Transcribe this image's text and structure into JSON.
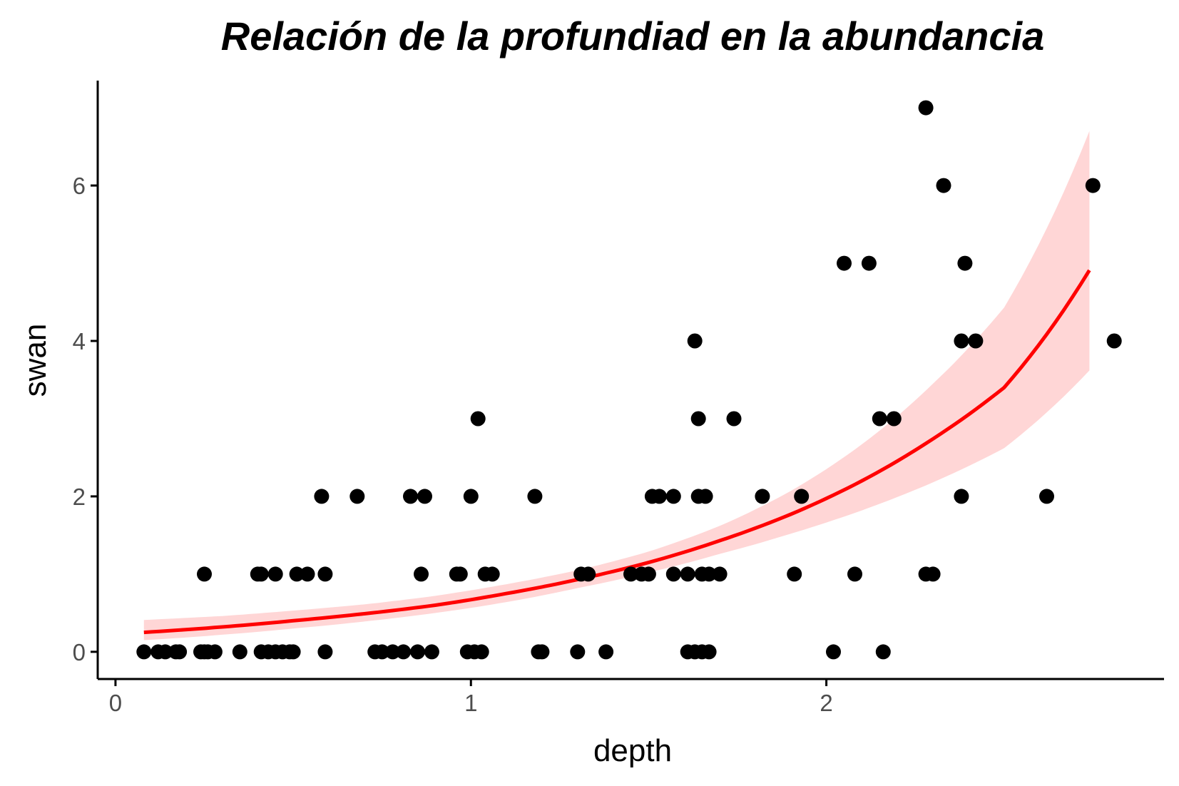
{
  "chart_data": {
    "type": "scatter",
    "title": "Relación de la profundiad en la abundancia",
    "xlabel": "depth",
    "ylabel": "swan",
    "xlim": [
      -0.05,
      2.95
    ],
    "ylim": [
      -0.35,
      7.35
    ],
    "xticks": [
      0,
      1,
      2
    ],
    "yticks": [
      0,
      2,
      4,
      6
    ],
    "grid": false,
    "legend": "none",
    "colors": {
      "points": "#000000",
      "fit_line": "#ff0000",
      "ribbon": "#ffd6d6",
      "axis": "#000000",
      "tick_labels": "#4d4d4d"
    },
    "points": [
      {
        "x": 0.08,
        "y": 0
      },
      {
        "x": 0.12,
        "y": 0
      },
      {
        "x": 0.14,
        "y": 0
      },
      {
        "x": 0.17,
        "y": 0
      },
      {
        "x": 0.18,
        "y": 0
      },
      {
        "x": 0.24,
        "y": 0
      },
      {
        "x": 0.25,
        "y": 0
      },
      {
        "x": 0.26,
        "y": 0
      },
      {
        "x": 0.28,
        "y": 0
      },
      {
        "x": 0.35,
        "y": 0
      },
      {
        "x": 0.41,
        "y": 0
      },
      {
        "x": 0.43,
        "y": 0
      },
      {
        "x": 0.45,
        "y": 0
      },
      {
        "x": 0.47,
        "y": 0
      },
      {
        "x": 0.49,
        "y": 0
      },
      {
        "x": 0.5,
        "y": 0
      },
      {
        "x": 0.59,
        "y": 0
      },
      {
        "x": 0.73,
        "y": 0
      },
      {
        "x": 0.75,
        "y": 0
      },
      {
        "x": 0.78,
        "y": 0
      },
      {
        "x": 0.81,
        "y": 0
      },
      {
        "x": 0.85,
        "y": 0
      },
      {
        "x": 0.89,
        "y": 0
      },
      {
        "x": 0.99,
        "y": 0
      },
      {
        "x": 1.01,
        "y": 0
      },
      {
        "x": 1.03,
        "y": 0
      },
      {
        "x": 1.19,
        "y": 0
      },
      {
        "x": 1.2,
        "y": 0
      },
      {
        "x": 1.3,
        "y": 0
      },
      {
        "x": 1.38,
        "y": 0
      },
      {
        "x": 1.61,
        "y": 0
      },
      {
        "x": 1.63,
        "y": 0
      },
      {
        "x": 1.65,
        "y": 0
      },
      {
        "x": 1.67,
        "y": 0
      },
      {
        "x": 2.02,
        "y": 0
      },
      {
        "x": 2.16,
        "y": 0
      },
      {
        "x": 0.25,
        "y": 1
      },
      {
        "x": 0.4,
        "y": 1
      },
      {
        "x": 0.41,
        "y": 1
      },
      {
        "x": 0.45,
        "y": 1
      },
      {
        "x": 0.51,
        "y": 1
      },
      {
        "x": 0.54,
        "y": 1
      },
      {
        "x": 0.59,
        "y": 1
      },
      {
        "x": 0.86,
        "y": 1
      },
      {
        "x": 0.96,
        "y": 1
      },
      {
        "x": 0.97,
        "y": 1
      },
      {
        "x": 1.04,
        "y": 1
      },
      {
        "x": 1.06,
        "y": 1
      },
      {
        "x": 1.31,
        "y": 1
      },
      {
        "x": 1.33,
        "y": 1
      },
      {
        "x": 1.45,
        "y": 1
      },
      {
        "x": 1.48,
        "y": 1
      },
      {
        "x": 1.5,
        "y": 1
      },
      {
        "x": 1.57,
        "y": 1
      },
      {
        "x": 1.61,
        "y": 1
      },
      {
        "x": 1.65,
        "y": 1
      },
      {
        "x": 1.67,
        "y": 1
      },
      {
        "x": 1.7,
        "y": 1
      },
      {
        "x": 1.91,
        "y": 1
      },
      {
        "x": 2.08,
        "y": 1
      },
      {
        "x": 2.28,
        "y": 1
      },
      {
        "x": 2.3,
        "y": 1
      },
      {
        "x": 0.58,
        "y": 2
      },
      {
        "x": 0.68,
        "y": 2
      },
      {
        "x": 0.83,
        "y": 2
      },
      {
        "x": 0.87,
        "y": 2
      },
      {
        "x": 1.0,
        "y": 2
      },
      {
        "x": 1.18,
        "y": 2
      },
      {
        "x": 1.51,
        "y": 2
      },
      {
        "x": 1.53,
        "y": 2
      },
      {
        "x": 1.57,
        "y": 2
      },
      {
        "x": 1.64,
        "y": 2
      },
      {
        "x": 1.66,
        "y": 2
      },
      {
        "x": 1.82,
        "y": 2
      },
      {
        "x": 1.93,
        "y": 2
      },
      {
        "x": 2.38,
        "y": 2
      },
      {
        "x": 2.62,
        "y": 2
      },
      {
        "x": 1.02,
        "y": 3
      },
      {
        "x": 1.64,
        "y": 3
      },
      {
        "x": 1.74,
        "y": 3
      },
      {
        "x": 2.15,
        "y": 3
      },
      {
        "x": 2.19,
        "y": 3
      },
      {
        "x": 1.63,
        "y": 4
      },
      {
        "x": 2.38,
        "y": 4
      },
      {
        "x": 2.42,
        "y": 4
      },
      {
        "x": 2.81,
        "y": 4
      },
      {
        "x": 2.05,
        "y": 5
      },
      {
        "x": 2.12,
        "y": 5
      },
      {
        "x": 2.39,
        "y": 5
      },
      {
        "x": 2.33,
        "y": 6
      },
      {
        "x": 2.75,
        "y": 6
      },
      {
        "x": 2.28,
        "y": 7
      }
    ],
    "fit": {
      "x": [
        0.08,
        0.3,
        0.5,
        0.7,
        0.9,
        1.1,
        1.3,
        1.5,
        1.7,
        1.9,
        2.1,
        2.3,
        2.5,
        2.74
      ],
      "y": [
        0.25,
        0.32,
        0.4,
        0.49,
        0.6,
        0.75,
        0.93,
        1.15,
        1.43,
        1.77,
        2.2,
        2.74,
        3.4,
        4.91
      ],
      "lower": [
        0.15,
        0.22,
        0.3,
        0.39,
        0.5,
        0.64,
        0.82,
        1.02,
        1.26,
        1.52,
        1.82,
        2.18,
        2.62,
        3.62
      ],
      "upper": [
        0.41,
        0.46,
        0.53,
        0.61,
        0.72,
        0.87,
        1.05,
        1.29,
        1.62,
        2.07,
        2.67,
        3.45,
        4.43,
        6.7
      ]
    }
  }
}
